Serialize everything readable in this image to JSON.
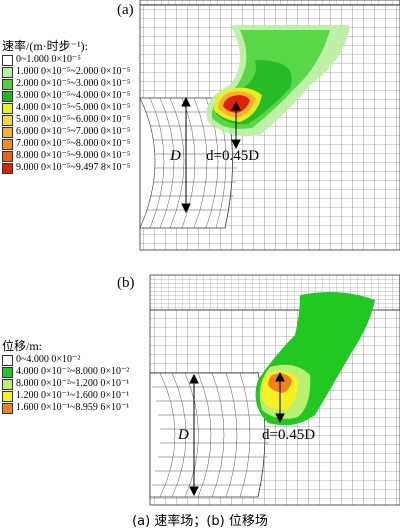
{
  "panel_a": {
    "label": "(a)",
    "legend_title": "速率/(m·时步⁻¹):",
    "legend": [
      {
        "text": "0~1.000 0×10⁻⁵",
        "color": "#ffffff"
      },
      {
        "text": "1.000 0×10⁻⁵~2.000 0×10⁻⁵",
        "color": "#b8f0a0"
      },
      {
        "text": "2.000 0×10⁻⁵~3.000 0×10⁻⁵",
        "color": "#4cd43c"
      },
      {
        "text": "3.000 0×10⁻⁵~4.000 0×10⁻⁵",
        "color": "#22b822"
      },
      {
        "text": "4.000 0×10⁻⁵~5.000 0×10⁻⁵",
        "color": "#f0f020"
      },
      {
        "text": "5.000 0×10⁻⁵~6.000 0×10⁻⁵",
        "color": "#f8d840"
      },
      {
        "text": "6.000 0×10⁻⁵~7.000 0×10⁻⁵",
        "color": "#f8b030"
      },
      {
        "text": "7.000 0×10⁻⁵~8.000 0×10⁻⁵",
        "color": "#f88c20"
      },
      {
        "text": "8.000 0×10⁻⁵~9.000 0×10⁻⁵",
        "color": "#f06010"
      },
      {
        "text": "9.000 0×10⁻⁵~9.497 8×10⁻⁵",
        "color": "#e02000"
      }
    ],
    "dim_D": "D",
    "depth_label": "d=0.45D"
  },
  "panel_b": {
    "label": "(b)",
    "legend_title": "位移/m:",
    "legend": [
      {
        "text": "0~4.000 0×10⁻²",
        "color": "#ffffff"
      },
      {
        "text": "4.000 0×10⁻²~8.000 0×10⁻²",
        "color": "#22c822"
      },
      {
        "text": "8.000 0×10⁻²~1.200 0×10⁻¹",
        "color": "#b8f070"
      },
      {
        "text": "1.200 0×10⁻¹~1.600 0×10⁻¹",
        "color": "#f8f020"
      },
      {
        "text": "1.600 0×10⁻¹~8.959 6×10⁻¹",
        "color": "#f08020"
      }
    ],
    "dim_D": "D",
    "depth_label": "d=0.45D"
  },
  "caption": "(a)  速率场；(b)  位移场"
}
